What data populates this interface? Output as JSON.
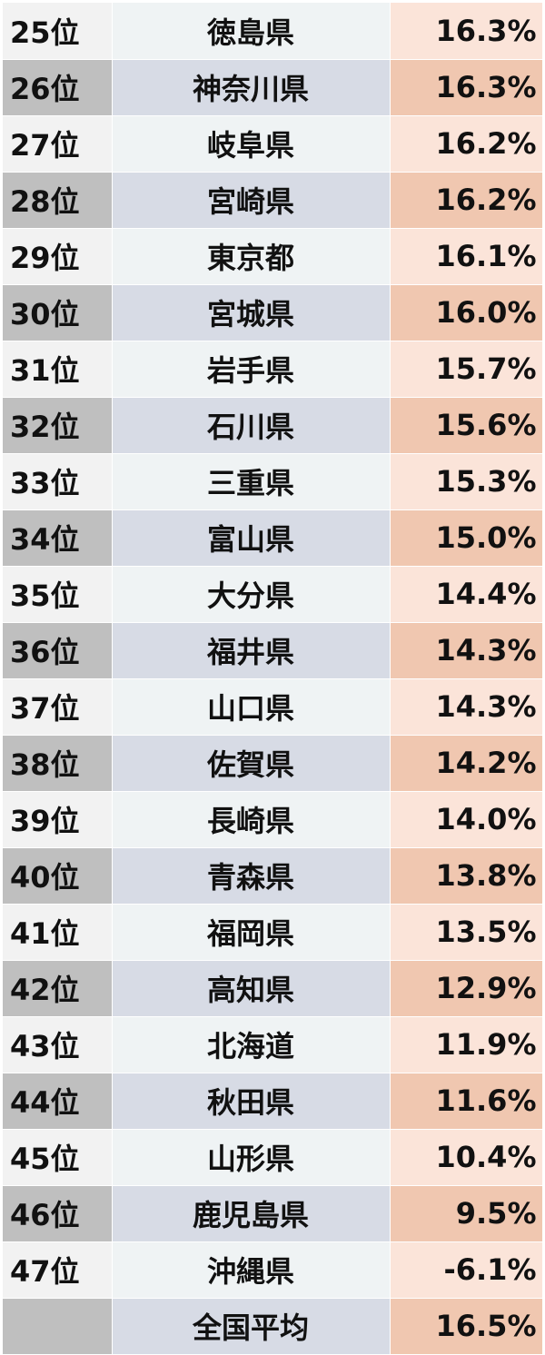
{
  "rows": [
    {
      "rank": "25位",
      "prefecture": "徳島県",
      "value": "16.3%"
    },
    {
      "rank": "26位",
      "prefecture": "神奈川県",
      "value": "16.3%"
    },
    {
      "rank": "27位",
      "prefecture": "岐阜県",
      "value": "16.2%"
    },
    {
      "rank": "28位",
      "prefecture": "宮崎県",
      "value": "16.2%"
    },
    {
      "rank": "29位",
      "prefecture": "東京都",
      "value": "16.1%"
    },
    {
      "rank": "30位",
      "prefecture": "宮城県",
      "value": "16.0%"
    },
    {
      "rank": "31位",
      "prefecture": "岩手県",
      "value": "15.7%"
    },
    {
      "rank": "32位",
      "prefecture": "石川県",
      "value": "15.6%"
    },
    {
      "rank": "33位",
      "prefecture": "三重県",
      "value": "15.3%"
    },
    {
      "rank": "34位",
      "prefecture": "富山県",
      "value": "15.0%"
    },
    {
      "rank": "35位",
      "prefecture": "大分県",
      "value": "14.4%"
    },
    {
      "rank": "36位",
      "prefecture": "福井県",
      "value": "14.3%"
    },
    {
      "rank": "37位",
      "prefecture": "山口県",
      "value": "14.3%"
    },
    {
      "rank": "38位",
      "prefecture": "佐賀県",
      "value": "14.2%"
    },
    {
      "rank": "39位",
      "prefecture": "長崎県",
      "value": "14.0%"
    },
    {
      "rank": "40位",
      "prefecture": "青森県",
      "value": "13.8%"
    },
    {
      "rank": "41位",
      "prefecture": "福岡県",
      "value": "13.5%"
    },
    {
      "rank": "42位",
      "prefecture": "高知県",
      "value": "12.9%"
    },
    {
      "rank": "43位",
      "prefecture": "北海道",
      "value": "11.9%"
    },
    {
      "rank": "44位",
      "prefecture": "秋田県",
      "value": "11.6%"
    },
    {
      "rank": "45位",
      "prefecture": "山形県",
      "value": "10.4%"
    },
    {
      "rank": "46位",
      "prefecture": "鹿児島県",
      "value": "9.5%"
    },
    {
      "rank": "47位",
      "prefecture": "沖縄県",
      "value": "-6.1%"
    },
    {
      "rank": "",
      "prefecture": "全国平均",
      "value": "16.5%"
    }
  ],
  "colors": {
    "rank_odd": "#f2f2f2",
    "rank_even": "#bfbfbf",
    "pref_odd": "#eff3f4",
    "pref_even": "#d7dbe5",
    "value_odd": "#fbe4d9",
    "value_even": "#f0c7b0"
  }
}
